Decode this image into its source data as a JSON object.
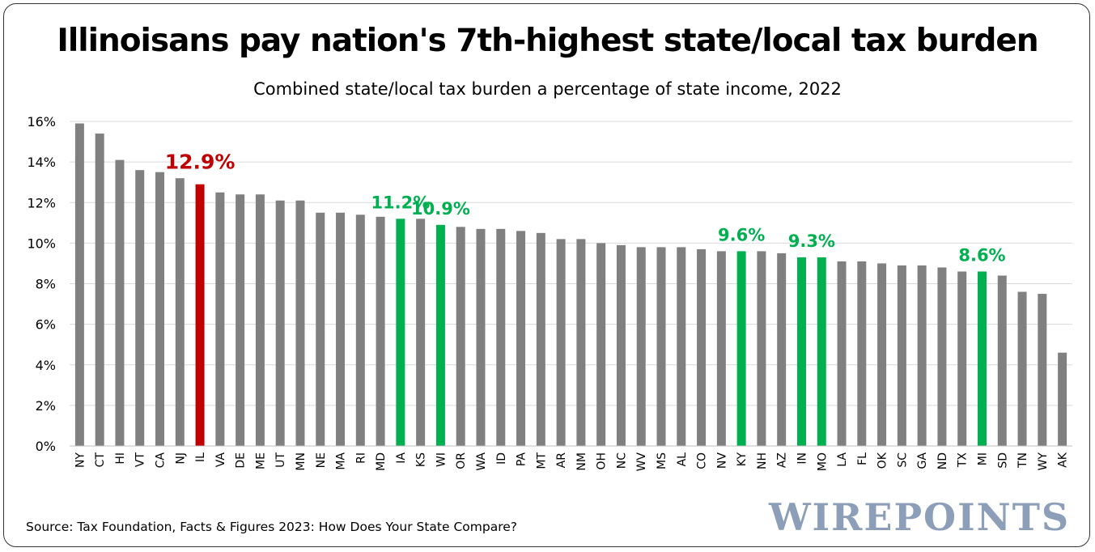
{
  "title": "Illinoisans pay nation's 7th-highest state/local tax burden",
  "subtitle": "Combined state/local tax burden a percentage of state income, 2022",
  "source": "Source: Tax Foundation, Facts & Figures 2023: How Does Your State Compare?",
  "brand": "WIREPOINTS",
  "colors": {
    "default_bar": "#808080",
    "highlight_red": "#c00000",
    "highlight_green": "#00b050",
    "grid": "#d9d9d9",
    "axis": "#bfbfbf"
  },
  "chart_data": {
    "type": "bar",
    "title": "Illinoisans pay nation's 7th-highest state/local tax burden",
    "subtitle": "Combined state/local tax burden a percentage of state income, 2022",
    "xlabel": "",
    "ylabel": "",
    "ylim": [
      0,
      16
    ],
    "yticks": [
      0,
      2,
      4,
      6,
      8,
      10,
      12,
      14,
      16
    ],
    "ytick_labels": [
      "0%",
      "2%",
      "4%",
      "6%",
      "8%",
      "10%",
      "12%",
      "14%",
      "16%"
    ],
    "grid": true,
    "categories": [
      "NY",
      "CT",
      "HI",
      "VT",
      "CA",
      "NJ",
      "IL",
      "VA",
      "DE",
      "ME",
      "UT",
      "MN",
      "NE",
      "MA",
      "RI",
      "MD",
      "IA",
      "KS",
      "WI",
      "OR",
      "WA",
      "ID",
      "PA",
      "MT",
      "AR",
      "NM",
      "OH",
      "NC",
      "WV",
      "MS",
      "AL",
      "CO",
      "NV",
      "KY",
      "NH",
      "AZ",
      "IN",
      "MO",
      "LA",
      "FL",
      "OK",
      "SC",
      "GA",
      "ND",
      "TX",
      "MI",
      "SD",
      "TN",
      "WY",
      "AK"
    ],
    "values": [
      15.9,
      15.4,
      14.1,
      13.6,
      13.5,
      13.2,
      12.9,
      12.5,
      12.4,
      12.4,
      12.1,
      12.1,
      11.5,
      11.5,
      11.4,
      11.3,
      11.2,
      11.2,
      10.9,
      10.8,
      10.7,
      10.7,
      10.6,
      10.5,
      10.2,
      10.2,
      10.0,
      9.9,
      9.8,
      9.8,
      9.8,
      9.7,
      9.6,
      9.6,
      9.6,
      9.5,
      9.3,
      9.3,
      9.1,
      9.1,
      9.0,
      8.9,
      8.9,
      8.8,
      8.6,
      8.6,
      8.4,
      7.6,
      7.5,
      4.6
    ],
    "highlights": {
      "IL": "red",
      "IA": "green",
      "WI": "green",
      "KY": "green",
      "IN": "green",
      "MO": "green",
      "MI": "green"
    },
    "annotations": [
      {
        "text": "12.9%",
        "category": "IL",
        "color": "red"
      },
      {
        "text": "11.2%",
        "category": "IA",
        "color": "green"
      },
      {
        "text": "10.9%",
        "category": "WI",
        "color": "green"
      },
      {
        "text": "9.6%",
        "category": "KY",
        "color": "green"
      },
      {
        "text": "9.3%",
        "categories": [
          "IN",
          "MO"
        ],
        "color": "green"
      },
      {
        "text": "8.6%",
        "category": "MI",
        "color": "green"
      }
    ]
  }
}
